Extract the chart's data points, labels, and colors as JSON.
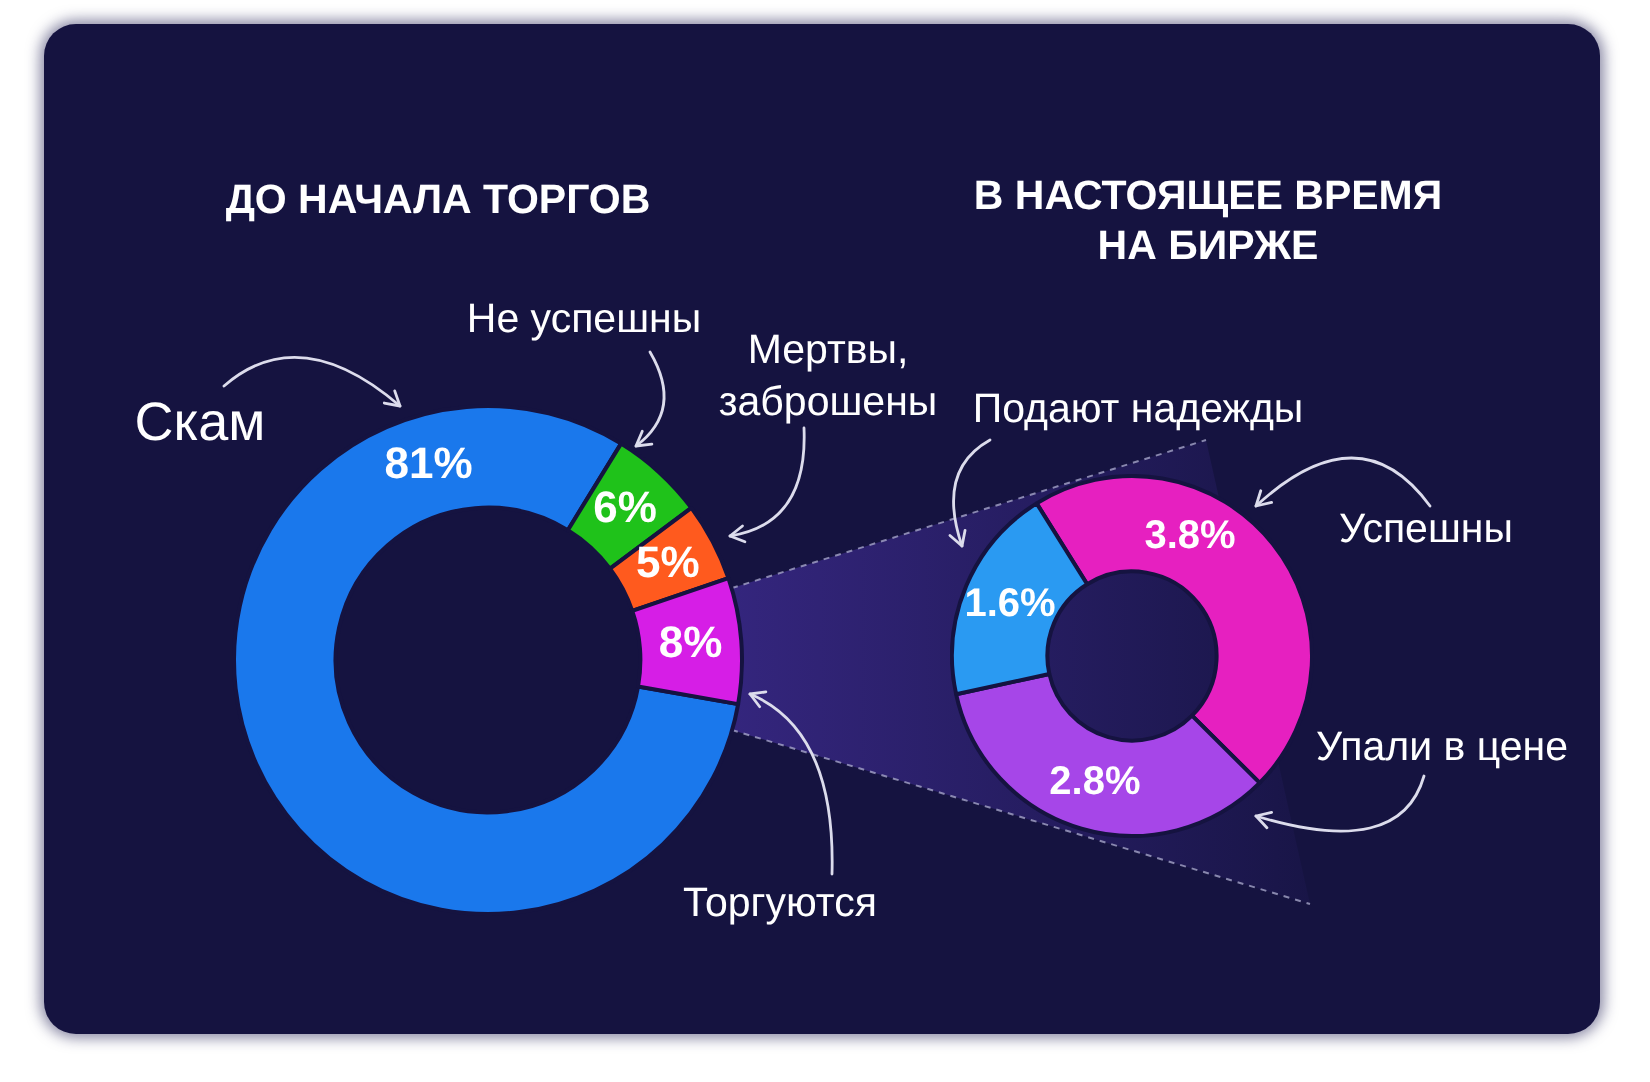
{
  "chart_data": [
    {
      "type": "donut",
      "title": "ДО НАЧАЛА ТОРГОВ",
      "categories": [
        "Скам",
        "Не успешны",
        "Мертвы, заброшены",
        "Торгуются"
      ],
      "values": [
        81,
        6,
        5,
        8
      ],
      "value_labels": [
        "81%",
        "6%",
        "5%",
        "8%"
      ],
      "colors": [
        "#1a78ec",
        "#1fc21a",
        "#ff5a1e",
        "#d61ee6"
      ]
    },
    {
      "type": "donut",
      "title": "В НАСТОЯЩЕЕ ВРЕМЯ НА БИРЖЕ",
      "categories": [
        "Успешны",
        "Упали в цене",
        "Подают надежды"
      ],
      "values": [
        3.8,
        2.8,
        1.6
      ],
      "value_labels": [
        "3.8%",
        "2.8%",
        "1.6%"
      ],
      "colors": [
        "#e620c0",
        "#a646e8",
        "#2a9af2"
      ]
    }
  ]
}
